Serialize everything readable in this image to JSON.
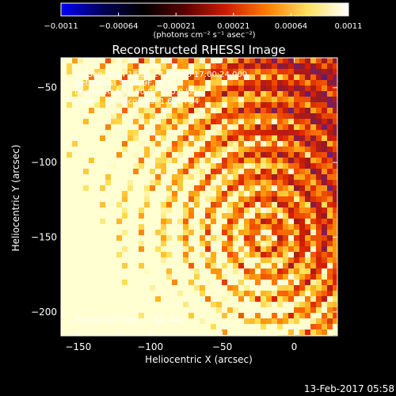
{
  "chart_data": {
    "type": "heatmap",
    "title": "Reconstructed RHESSI Image",
    "xlabel": "Heliocentric X (arcsec)",
    "ylabel": "Heliocentric Y (arcsec)",
    "xlim": [
      -162,
      30
    ],
    "ylim": [
      -216,
      -30
    ],
    "x_ticks": [
      -150,
      -100,
      -50,
      0
    ],
    "x_tick_labels": [
      "−150",
      "−100",
      "−50",
      "0"
    ],
    "y_ticks": [
      -50,
      -100,
      -150,
      -200
    ],
    "y_tick_labels": [
      "−50",
      "−100",
      "−150",
      "−200"
    ],
    "colorbar": {
      "min": -0.0011,
      "max": 0.0011,
      "tick_labels": [
        "−0.0011",
        "−0.00064",
        "−0.00021",
        "0.00021",
        "0.00064",
        "0.0011"
      ],
      "units": "(photons cm⁻² s⁻¹ asec⁻²)",
      "colormap": [
        "#0000ff",
        "#00005a",
        "#000000",
        "#5a0000",
        "#cc1a00",
        "#ff7a00",
        "#ffe05a",
        "#ffffff"
      ]
    },
    "annotations": [
      "10-Sep-2014 16:50:24.000 to 17:00:24.000",
      "Detectors: 3F 6F 9F, Pt 0",
      "Energy Range: 50.0 - 100.0 keV",
      "Clean    Total counts: 1.61E+04"
    ],
    "peak_label": "Position of Peak = [-84,-44]",
    "peak": [
      -84,
      -44
    ],
    "background_color": "#5a2a80"
  },
  "footer_timestamp": "13-Feb-2017 05:58"
}
